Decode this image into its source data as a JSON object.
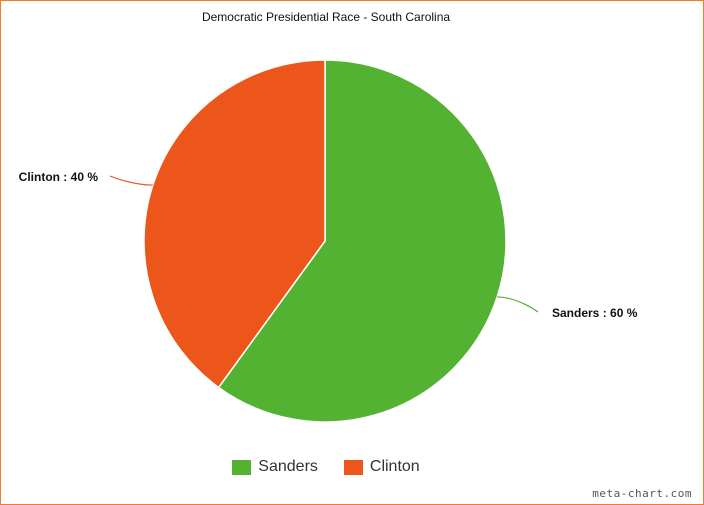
{
  "chart_data": {
    "type": "pie",
    "title": "Democratic Presidential Race - South Carolina",
    "slices": [
      {
        "name": "Sanders",
        "value": 60,
        "label": "Sanders : 60 %",
        "color": "#53b232"
      },
      {
        "name": "Clinton",
        "value": 40,
        "label": "Clinton : 40 %",
        "color": "#ed561b"
      }
    ],
    "legend": {
      "placement": "bottom",
      "items": [
        "Sanders",
        "Clinton"
      ]
    }
  },
  "credit": "meta-chart.com",
  "colors": {
    "border": "#f07a2e"
  }
}
